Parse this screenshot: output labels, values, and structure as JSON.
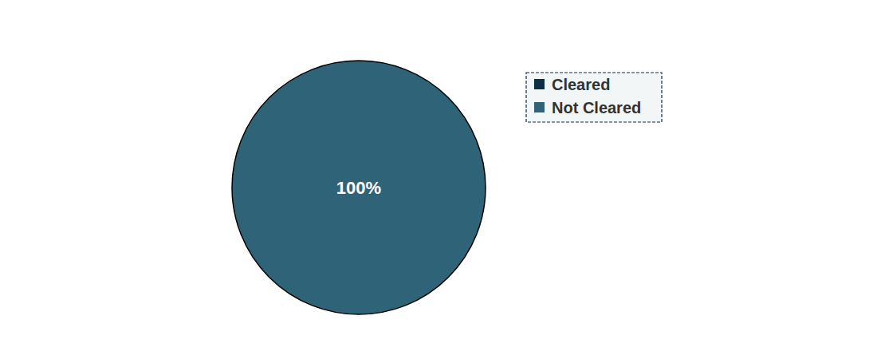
{
  "chart_data": {
    "type": "pie",
    "categories": [
      "Cleared",
      "Not Cleared"
    ],
    "values": [
      0,
      100
    ],
    "value_labels": [
      null,
      "100%"
    ],
    "colors": [
      "#0c2f45",
      "#2f6478"
    ],
    "data_labels": true,
    "legend": "right"
  }
}
